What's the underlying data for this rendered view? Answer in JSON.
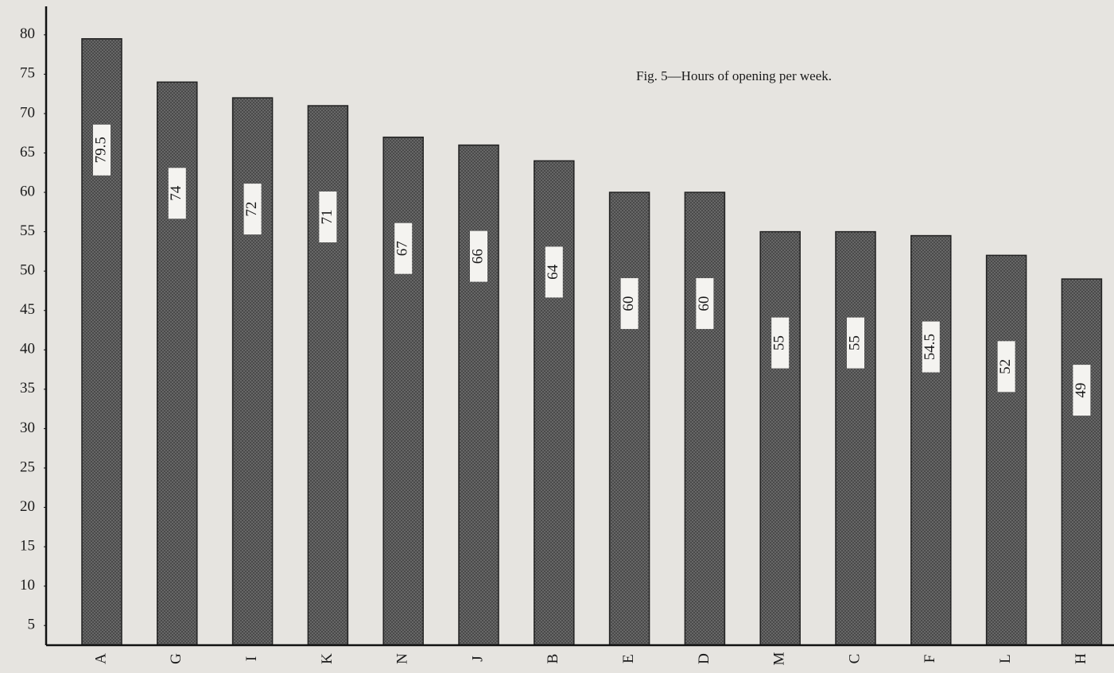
{
  "chart_data": {
    "type": "bar",
    "title": "Fig. 5—Hours of opening per week.",
    "categories": [
      "A",
      "G",
      "I",
      "K",
      "N",
      "J",
      "B",
      "E",
      "D",
      "M",
      "C",
      "F",
      "L",
      "H"
    ],
    "values": [
      79.5,
      74,
      72,
      71,
      67,
      66,
      64,
      60,
      60,
      55,
      55,
      54.5,
      52,
      49
    ],
    "color": "#4a4a4a",
    "ylim": [
      2.5,
      82
    ],
    "yticks": [
      5,
      10,
      15,
      20,
      25,
      30,
      35,
      40,
      45,
      50,
      55,
      60,
      65,
      70,
      75,
      80
    ],
    "grid": false
  }
}
